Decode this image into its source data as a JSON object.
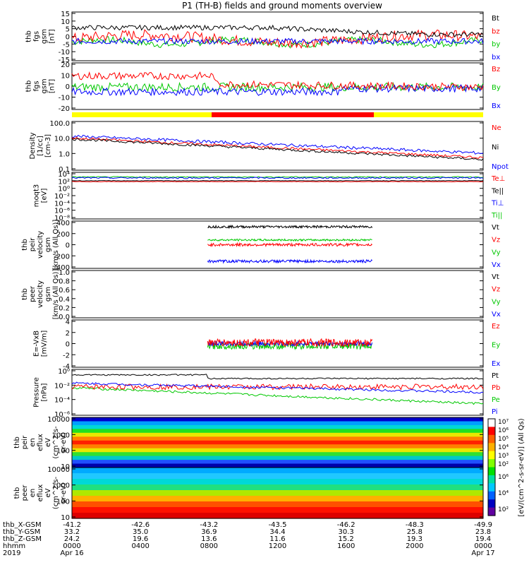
{
  "title": "P1 (TH-B) fields and ground moments overview",
  "colors": {
    "black": "#000000",
    "red": "#ff0000",
    "green": "#00c800",
    "blue": "#0000ff",
    "yellow": "#ffff00"
  },
  "chart_data": {
    "type": "line",
    "x_ticks": [
      "0000",
      "0400",
      "0800",
      "1200",
      "1600",
      "2000",
      "0000"
    ],
    "x_start_label": "Apr 16",
    "x_end_label": "Apr 17",
    "year": "2019",
    "ephemeris": [
      {
        "name": "thb_X-GSM",
        "values": [
          "-41.2",
          "-42.6",
          "-43.2",
          "-43.5",
          "-46.2",
          "-48.3",
          "-49.9"
        ]
      },
      {
        "name": "thb_Y-GSM",
        "values": [
          "33.2",
          "35.0",
          "36.9",
          "34.4",
          "30.3",
          "25.8",
          "23.8"
        ]
      },
      {
        "name": "thb_Z-GSM",
        "values": [
          "24.2",
          "19.6",
          "13.6",
          "11.6",
          "15.2",
          "19.3",
          "19.4"
        ]
      },
      {
        "name": "hhmm",
        "values": [
          "0000",
          "0400",
          "0800",
          "1200",
          "1600",
          "2000",
          "0000"
        ]
      }
    ],
    "panels": [
      {
        "id": "fgs_gsm_1",
        "ylabel": [
          "thb",
          "fgs",
          "gsm",
          "[nT]"
        ],
        "yticks": [
          "15",
          "10",
          "5",
          "0",
          "-5",
          "-10",
          "-15"
        ],
        "legend": [
          {
            "name": "Bt",
            "color": "black"
          },
          {
            "name": "bz",
            "color": "red"
          },
          {
            "name": "by",
            "color": "green"
          },
          {
            "name": "bx",
            "color": "blue"
          }
        ]
      },
      {
        "id": "fgs_gsm_2",
        "ylabel": [
          "thb",
          "fgs",
          "gsm",
          "[nT]"
        ],
        "yticks": [
          "20",
          "10",
          "0",
          "-10",
          "-20"
        ],
        "legend": [
          {
            "name": "Bz",
            "color": "red"
          },
          {
            "name": "By",
            "color": "green"
          },
          {
            "name": "Bx",
            "color": "blue"
          }
        ]
      },
      {
        "id": "density",
        "ylabel": [
          "Density",
          "[1/cc]",
          "[cm-3]"
        ],
        "yticks": [
          "100.0",
          "10.0",
          "1.0",
          "0.1"
        ],
        "legend": [
          {
            "name": "Ne",
            "color": "red"
          },
          {
            "name": "Ni",
            "color": "black"
          },
          {
            "name": "Npot",
            "color": "blue"
          }
        ]
      },
      {
        "id": "temperature",
        "ylabel": [
          "moqt3",
          "[eV]"
        ],
        "yticks": [
          "10⁴",
          "10²",
          "10⁰",
          "10⁻²",
          "10⁻⁴",
          "10⁻⁶",
          "10⁻⁸"
        ],
        "legend": [
          {
            "name": "Te⊥",
            "color": "red"
          },
          {
            "name": "Te||",
            "color": "black"
          },
          {
            "name": "Ti⊥",
            "color": "blue"
          },
          {
            "name": "Ti||",
            "color": "green"
          }
        ]
      },
      {
        "id": "velocity_i",
        "ylabel": [
          "thb",
          "peir",
          "velocity",
          "gsm",
          "[km/s (All Qs)]"
        ],
        "yticks": [
          "400",
          "200",
          "0",
          "-200",
          "-400"
        ],
        "legend": [
          {
            "name": "Vt",
            "color": "black"
          },
          {
            "name": "Vz",
            "color": "red"
          },
          {
            "name": "Vy",
            "color": "green"
          },
          {
            "name": "Vx",
            "color": "blue"
          }
        ]
      },
      {
        "id": "velocity_e",
        "ylabel": [
          "thb",
          "peer",
          "velocity",
          "gsm",
          "[km/s (All Qs)]"
        ],
        "yticks": [
          "1.0",
          "0.8",
          "0.6",
          "0.4",
          "0.2",
          "0.0"
        ],
        "legend": [
          {
            "name": "Vt",
            "color": "black"
          },
          {
            "name": "Vz",
            "color": "red"
          },
          {
            "name": "Vy",
            "color": "green"
          },
          {
            "name": "Vx",
            "color": "blue"
          }
        ]
      },
      {
        "id": "efield",
        "ylabel": [
          "E=-VxB",
          "[mV/m]"
        ],
        "yticks": [
          "4",
          "2",
          "0",
          "-2",
          "-4"
        ],
        "legend": [
          {
            "name": "Ez",
            "color": "red"
          },
          {
            "name": "Ey",
            "color": "green"
          },
          {
            "name": "Ex",
            "color": "blue"
          }
        ]
      },
      {
        "id": "pressure",
        "ylabel": [
          "Pressure",
          "[nPa]"
        ],
        "yticks": [
          "10⁰",
          "10⁻²",
          "10⁻⁴",
          "10⁻⁶"
        ],
        "legend": [
          {
            "name": "Pt",
            "color": "black"
          },
          {
            "name": "Pb",
            "color": "red"
          },
          {
            "name": "Pe",
            "color": "green"
          },
          {
            "name": "Pi",
            "color": "blue"
          }
        ]
      },
      {
        "id": "peir_spec",
        "ylabel": [
          "thb",
          "peir",
          "en",
          "eflux",
          "eV",
          "(cm^2-s-",
          "sr-eV)"
        ],
        "yticks": [
          "10000",
          "1000",
          "100",
          "10"
        ]
      },
      {
        "id": "peer_spec",
        "ylabel": [
          "thb",
          "peer",
          "en",
          "eflux",
          "eV",
          "(cm^2-s-",
          "sr-eV)"
        ],
        "yticks": [
          "10000",
          "1000",
          "100",
          "10"
        ]
      }
    ],
    "colorbar": {
      "label": "[eV/(cm^2-s-sr-eV)] (All Qs)",
      "ticks_top": [
        "10⁷",
        "10⁶",
        "10⁵",
        "10⁴",
        "10³",
        "10²"
      ],
      "ticks_bottom": [
        "10⁶",
        "10⁴",
        "10²"
      ]
    }
  }
}
